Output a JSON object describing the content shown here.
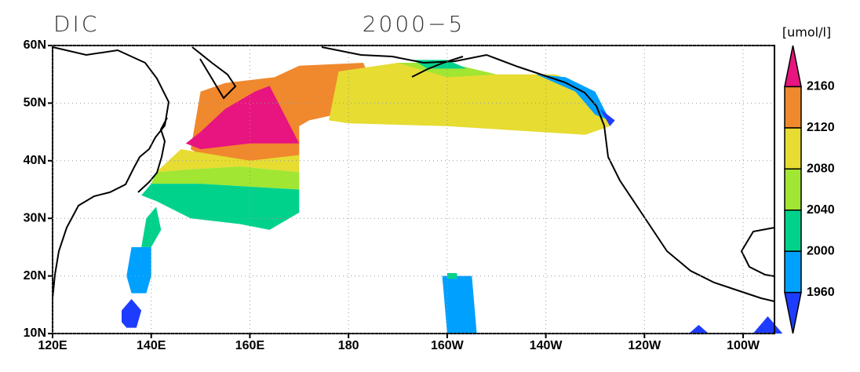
{
  "title_left": "DIC",
  "title_center": "2000−5",
  "units": "[umol/l]",
  "lat_ticks": [
    {
      "value": 60,
      "label": "60N"
    },
    {
      "value": 50,
      "label": "50N"
    },
    {
      "value": 40,
      "label": "40N"
    },
    {
      "value": 30,
      "label": "30N"
    },
    {
      "value": 20,
      "label": "20N"
    },
    {
      "value": 10,
      "label": "10N"
    }
  ],
  "lon_ticks": [
    {
      "value": 120,
      "label": "120E"
    },
    {
      "value": 140,
      "label": "140E"
    },
    {
      "value": 160,
      "label": "160E"
    },
    {
      "value": 180,
      "label": "180"
    },
    {
      "value": -160,
      "label": "160W"
    },
    {
      "value": -140,
      "label": "140W"
    },
    {
      "value": -120,
      "label": "120W"
    },
    {
      "value": -100,
      "label": "100W"
    }
  ],
  "colorbar": {
    "levels": [
      1960,
      2000,
      2040,
      2080,
      2120,
      2160
    ],
    "colors": [
      "#1e3cff",
      "#00a0ff",
      "#00d28c",
      "#a0e632",
      "#e6dc32",
      "#f0882d",
      "#e8147f"
    ]
  }
}
